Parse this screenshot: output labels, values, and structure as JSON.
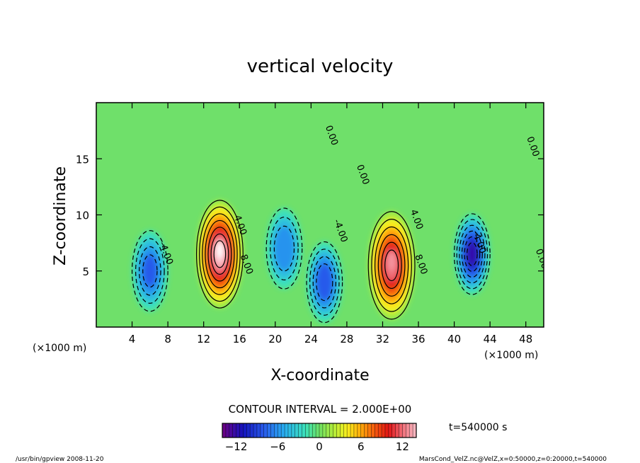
{
  "chart_data": {
    "type": "heatmap",
    "title": "vertical velocity",
    "xlabel": "X-coordinate",
    "ylabel": "Z-coordinate",
    "x_unit_left": "(×1000 m)",
    "x_unit_right": "(×1000 m)",
    "xlim": [
      0,
      50
    ],
    "ylim": [
      0,
      20
    ],
    "x_ticks": [
      4,
      8,
      12,
      16,
      20,
      24,
      28,
      32,
      36,
      40,
      44,
      48
    ],
    "y_ticks": [
      5,
      10,
      15
    ],
    "contour_interval_label": "CONTOUR INTERVAL = 2.000E+00",
    "time_label": "t=540000 s",
    "colorbar": {
      "range": [
        -14,
        14
      ],
      "ticks": [
        -12,
        -6,
        0,
        6,
        12
      ]
    },
    "contour_labels": [
      {
        "text": "0.00",
        "x": 26.0,
        "y": 17.0
      },
      {
        "text": "0.00",
        "x": 29.5,
        "y": 13.5
      },
      {
        "text": "0.00",
        "x": 48.5,
        "y": 16.0
      },
      {
        "text": "0.00",
        "x": 49.5,
        "y": 6.0
      },
      {
        "text": "-4.00",
        "x": 7.5,
        "y": 6.5
      },
      {
        "text": "4.00",
        "x": 15.8,
        "y": 9.0
      },
      {
        "text": "8.00",
        "x": 16.5,
        "y": 5.5
      },
      {
        "text": "-4.00",
        "x": 27.0,
        "y": 8.5
      },
      {
        "text": "4.00",
        "x": 35.5,
        "y": 9.5
      },
      {
        "text": "8.00",
        "x": 36.0,
        "y": 5.5
      },
      {
        "text": "-4.00",
        "x": 42.5,
        "y": 7.5
      }
    ],
    "features": [
      {
        "kind": "updraft",
        "x": 13.8,
        "z": 6.5,
        "peak": 14
      },
      {
        "kind": "updraft",
        "x": 33.0,
        "z": 5.5,
        "peak": 12
      },
      {
        "kind": "downdraft",
        "x": 6.0,
        "z": 5.0,
        "peak": -8
      },
      {
        "kind": "downdraft",
        "x": 21.0,
        "z": 7.0,
        "peak": -7
      },
      {
        "kind": "downdraft",
        "x": 25.5,
        "z": 4.0,
        "peak": -9
      },
      {
        "kind": "downdraft",
        "x": 42.0,
        "z": 6.5,
        "peak": -12
      }
    ],
    "grid": false
  },
  "footer": {
    "left": "/usr/bin/gpview  2008-11-20",
    "right": "MarsCond_VelZ.nc@VelZ,x=0:50000,z=0:20000,t=540000"
  }
}
